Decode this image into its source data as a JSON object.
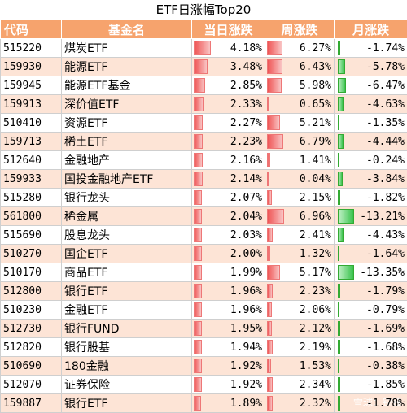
{
  "title": "ETF日涨幅Top20",
  "headers": [
    "代码",
    "基金名",
    "当日涨跌",
    "周涨跌",
    "月涨跌"
  ],
  "watermark": "雪球：锐锋",
  "chart_data": {
    "type": "table",
    "title": "ETF日涨幅Top20",
    "columns": [
      "代码",
      "基金名",
      "当日涨跌",
      "周涨跌",
      "月涨跌"
    ],
    "rows": [
      [
        "515220",
        "煤炭ETF",
        4.18,
        6.27,
        -1.74
      ],
      [
        "159930",
        "能源ETF",
        3.48,
        6.43,
        -5.78
      ],
      [
        "159945",
        "能源ETF基金",
        2.85,
        5.98,
        -6.47
      ],
      [
        "159913",
        "深价值ETF",
        2.33,
        0.65,
        -4.63
      ],
      [
        "510410",
        "资源ETF",
        2.27,
        5.21,
        -1.35
      ],
      [
        "159713",
        "稀土ETF",
        2.23,
        6.79,
        -4.44
      ],
      [
        "512640",
        "金融地产",
        2.16,
        1.41,
        -0.24
      ],
      [
        "159933",
        "国投金融地产ETF",
        2.14,
        0.04,
        -3.84
      ],
      [
        "515280",
        "银行龙头",
        2.07,
        2.15,
        -1.82
      ],
      [
        "561800",
        "稀金属",
        2.04,
        6.96,
        -13.21
      ],
      [
        "515690",
        "股息龙头",
        2.03,
        2.41,
        -4.43
      ],
      [
        "510270",
        "国企ETF",
        2.0,
        1.32,
        -1.64
      ],
      [
        "510170",
        "商品ETF",
        1.99,
        5.17,
        -13.35
      ],
      [
        "512800",
        "银行ETF",
        1.96,
        2.23,
        -1.79
      ],
      [
        "510230",
        "金融ETF",
        1.96,
        2.06,
        -0.79
      ],
      [
        "512730",
        "银行FUND",
        1.95,
        2.12,
        -1.69
      ],
      [
        "512820",
        "银行股基",
        1.94,
        2.19,
        -1.68
      ],
      [
        "510690",
        "180金融",
        1.92,
        1.53,
        -0.38
      ],
      [
        "512070",
        "证券保险",
        1.92,
        2.34,
        -1.85
      ],
      [
        "159887",
        "银行ETF",
        1.89,
        2.32,
        -1.78
      ]
    ],
    "display_text": [
      [
        "4.18%",
        "6.27%",
        "-1.74%"
      ],
      [
        "3.48%",
        "6.43%",
        "-5.78%"
      ],
      [
        "2.85%",
        "5.98%",
        "-6.47%"
      ],
      [
        "2.33%",
        "0.65%",
        "-4.63%"
      ],
      [
        "2.27%",
        "5.21%",
        "-1.35%"
      ],
      [
        "2.23%",
        "6.79%",
        "-4.44%"
      ],
      [
        "2.16%",
        "1.41%",
        "-0.24%"
      ],
      [
        "2.14%",
        "0.04%",
        "-3.84%"
      ],
      [
        "2.07%",
        "2.15%",
        "-1.82%"
      ],
      [
        "2.04%",
        "6.96%",
        "-13.21%"
      ],
      [
        "2.03%",
        "2.41%",
        "-4.43%"
      ],
      [
        "2.00%",
        "1.32%",
        "-1.64%"
      ],
      [
        "1.99%",
        "5.17%",
        "-13.35%"
      ],
      [
        "1.96%",
        "2.23%",
        "-1.79%"
      ],
      [
        "1.96%",
        "2.06%",
        "-0.79%"
      ],
      [
        "1.95%",
        "2.12%",
        "-1.69%"
      ],
      [
        "1.94%",
        "2.19%",
        "-1.68%"
      ],
      [
        "1.92%",
        "1.53%",
        "-0.38%"
      ],
      [
        "1.92%",
        "2.34%",
        "-1.85%"
      ],
      [
        "1.89%",
        "2.32%",
        "-1.78%"
      ]
    ],
    "colors": {
      "header_bg": "#f6a36d",
      "row_alt": "#fde4d6",
      "positive_bar": "#ef5555",
      "negative_bar": "#38c24c"
    }
  }
}
